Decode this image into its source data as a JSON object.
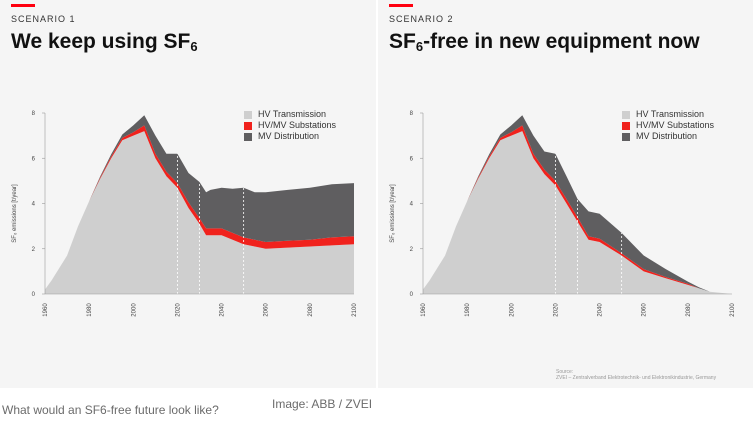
{
  "colors": {
    "hv_transmission": "#cfcfcf",
    "hv_mv_substations": "#f0221d",
    "mv_distribution": "#5f5e60",
    "accent": "#ff000f",
    "panel_bg": "#f5f5f5"
  },
  "panels": [
    {
      "scenario": "SCENARIO 1",
      "headline_pre": "We keep using SF",
      "headline_sub": "6",
      "headline_post": ""
    },
    {
      "scenario": "SCENARIO 2",
      "headline_pre": "SF",
      "headline_sub": "6",
      "headline_post": "-free in new equipment now"
    }
  ],
  "legend": [
    "HV Transmission",
    "HV/MV Substations",
    "MV Distribution"
  ],
  "source": {
    "label": "Source:",
    "text": "ZVEI – Zentralverband Elektrotechnik- und Elektronikindustrie, Germany"
  },
  "caption": "What would an SF6-free future look like?",
  "credit": "Image: ABB / ZVEI",
  "chart_data": [
    {
      "type": "area",
      "stacked": true,
      "title": "We keep using SF6",
      "ylabel": "SF₆ emissions [t/year]",
      "xlim": [
        1960,
        2100
      ],
      "ylim": [
        0,
        8
      ],
      "xticks": [
        "1960",
        "1980",
        "2000",
        "2020",
        "2040",
        "2060",
        "2080",
        "2100"
      ],
      "yticks": [
        "0",
        "2",
        "4",
        "6",
        "8"
      ],
      "grid": false,
      "legend_position": "top-right",
      "marker_years": [
        2020,
        2030,
        2050
      ],
      "x": [
        1960,
        1963,
        1970,
        1975,
        1980,
        1985,
        1990,
        1995,
        2000,
        2005,
        2010,
        2015,
        2020,
        2025,
        2030,
        2033,
        2035,
        2040,
        2045,
        2050,
        2055,
        2060,
        2070,
        2080,
        2090,
        2100
      ],
      "series": [
        {
          "name": "HV Transmission",
          "values": [
            0.2,
            0.6,
            1.7,
            3.0,
            4.1,
            5.1,
            6.0,
            6.8,
            7.0,
            7.2,
            6.0,
            5.2,
            4.7,
            3.8,
            3.1,
            2.6,
            2.6,
            2.6,
            2.4,
            2.2,
            2.1,
            2.0,
            2.05,
            2.1,
            2.15,
            2.2
          ]
        },
        {
          "name": "HV/MV Substations",
          "values": [
            0.0,
            0.0,
            0.0,
            0.0,
            0.0,
            0.05,
            0.08,
            0.1,
            0.15,
            0.25,
            0.2,
            0.2,
            0.2,
            0.25,
            0.25,
            0.3,
            0.3,
            0.3,
            0.3,
            0.3,
            0.3,
            0.3,
            0.3,
            0.3,
            0.35,
            0.35
          ]
        },
        {
          "name": "MV Distribution",
          "values": [
            0.0,
            0.0,
            0.0,
            0.0,
            0.0,
            0.05,
            0.1,
            0.15,
            0.3,
            0.45,
            0.8,
            0.8,
            1.3,
            1.3,
            1.6,
            1.6,
            1.7,
            1.8,
            1.95,
            2.2,
            2.1,
            2.2,
            2.25,
            2.3,
            2.35,
            2.35
          ]
        }
      ]
    },
    {
      "type": "area",
      "stacked": true,
      "title": "SF6-free in new equipment now",
      "ylabel": "SF₆ emissions [t/year]",
      "xlim": [
        1960,
        2100
      ],
      "ylim": [
        0,
        8
      ],
      "xticks": [
        "1960",
        "1980",
        "2000",
        "2020",
        "2040",
        "2060",
        "2080",
        "2100"
      ],
      "yticks": [
        "0",
        "2",
        "4",
        "6",
        "8"
      ],
      "grid": false,
      "legend_position": "top-right",
      "marker_years": [
        2020,
        2030,
        2050
      ],
      "x": [
        1960,
        1963,
        1970,
        1975,
        1980,
        1985,
        1990,
        1995,
        2000,
        2005,
        2010,
        2015,
        2020,
        2025,
        2030,
        2035,
        2040,
        2050,
        2060,
        2070,
        2080,
        2085,
        2090,
        2100
      ],
      "series": [
        {
          "name": "HV Transmission",
          "values": [
            0.2,
            0.6,
            1.7,
            3.0,
            4.1,
            5.1,
            6.0,
            6.8,
            7.0,
            7.2,
            6.0,
            5.3,
            4.8,
            4.0,
            3.2,
            2.4,
            2.3,
            1.7,
            1.0,
            0.7,
            0.4,
            0.25,
            0.1,
            0.0
          ]
        },
        {
          "name": "HV/MV Substations",
          "values": [
            0.0,
            0.0,
            0.0,
            0.0,
            0.0,
            0.05,
            0.08,
            0.1,
            0.15,
            0.25,
            0.2,
            0.2,
            0.2,
            0.2,
            0.2,
            0.15,
            0.15,
            0.1,
            0.1,
            0.05,
            0.05,
            0.0,
            0.0,
            0.0
          ]
        },
        {
          "name": "MV Distribution",
          "values": [
            0.0,
            0.0,
            0.0,
            0.0,
            0.0,
            0.05,
            0.1,
            0.15,
            0.3,
            0.45,
            0.8,
            0.8,
            1.2,
            1.0,
            0.8,
            1.1,
            1.1,
            0.9,
            0.6,
            0.35,
            0.1,
            0.05,
            0.0,
            0.0
          ]
        }
      ]
    }
  ]
}
